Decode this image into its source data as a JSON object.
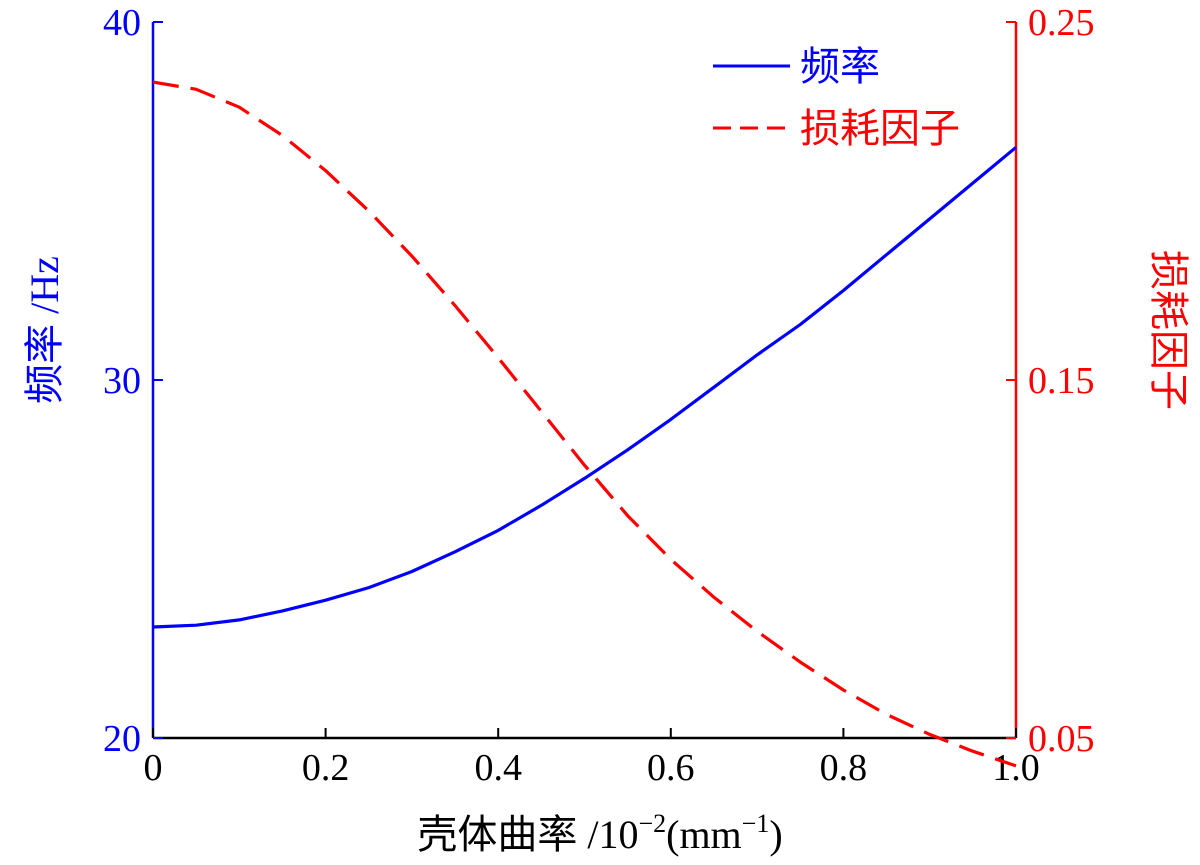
{
  "chart_data": {
    "type": "line",
    "x_axis": {
      "label_main": "壳体曲率 /10",
      "label_exp": "−2",
      "label_unit_open": "(mm",
      "label_unit_exp": "−1",
      "label_unit_close": ")",
      "range": [
        0,
        1.0
      ],
      "ticks": [
        0,
        0.2,
        0.4,
        0.6,
        0.8,
        1.0
      ],
      "tick_labels": [
        "0",
        "0.2",
        "0.4",
        "0.6",
        "0.8",
        "1.0"
      ]
    },
    "y_left": {
      "label": "频率 /Hz",
      "range": [
        20,
        40
      ],
      "ticks": [
        20,
        30,
        40
      ],
      "tick_labels": [
        "20",
        "30",
        "40"
      ],
      "color": "#0000ff"
    },
    "y_right": {
      "label": "损耗因子",
      "range": [
        0.05,
        0.25
      ],
      "ticks": [
        0.05,
        0.15,
        0.25
      ],
      "tick_labels": [
        "0.05",
        "0.15",
        "0.25"
      ],
      "color": "#ff0000"
    },
    "legend_position": "top-right",
    "grid": false,
    "series": [
      {
        "name": "频率",
        "axis": "left",
        "style": "solid",
        "color": "#0000ff",
        "x": [
          0,
          0.05,
          0.1,
          0.15,
          0.2,
          0.25,
          0.3,
          0.35,
          0.4,
          0.45,
          0.5,
          0.55,
          0.6,
          0.65,
          0.7,
          0.75,
          0.8,
          0.85,
          0.9,
          0.95,
          1.0
        ],
        "y": [
          23.1,
          23.15,
          23.3,
          23.55,
          23.85,
          24.2,
          24.65,
          25.2,
          25.8,
          26.5,
          27.25,
          28.05,
          28.9,
          29.8,
          30.7,
          31.55,
          32.5,
          33.5,
          34.5,
          35.5,
          36.5
        ]
      },
      {
        "name": "损耗因子",
        "axis": "right",
        "style": "dashed",
        "color": "#ff0000",
        "x": [
          0,
          0.05,
          0.1,
          0.15,
          0.2,
          0.25,
          0.3,
          0.35,
          0.4,
          0.45,
          0.5,
          0.55,
          0.6,
          0.65,
          0.7,
          0.75,
          0.8,
          0.85,
          0.9,
          0.95,
          1.0
        ],
        "y": [
          0.2332,
          0.2312,
          0.2262,
          0.2183,
          0.2085,
          0.1972,
          0.1846,
          0.1708,
          0.1562,
          0.1412,
          0.1262,
          0.1121,
          0.0999,
          0.0893,
          0.0798,
          0.0712,
          0.0634,
          0.0566,
          0.051,
          0.0463,
          0.0422
        ]
      }
    ]
  }
}
